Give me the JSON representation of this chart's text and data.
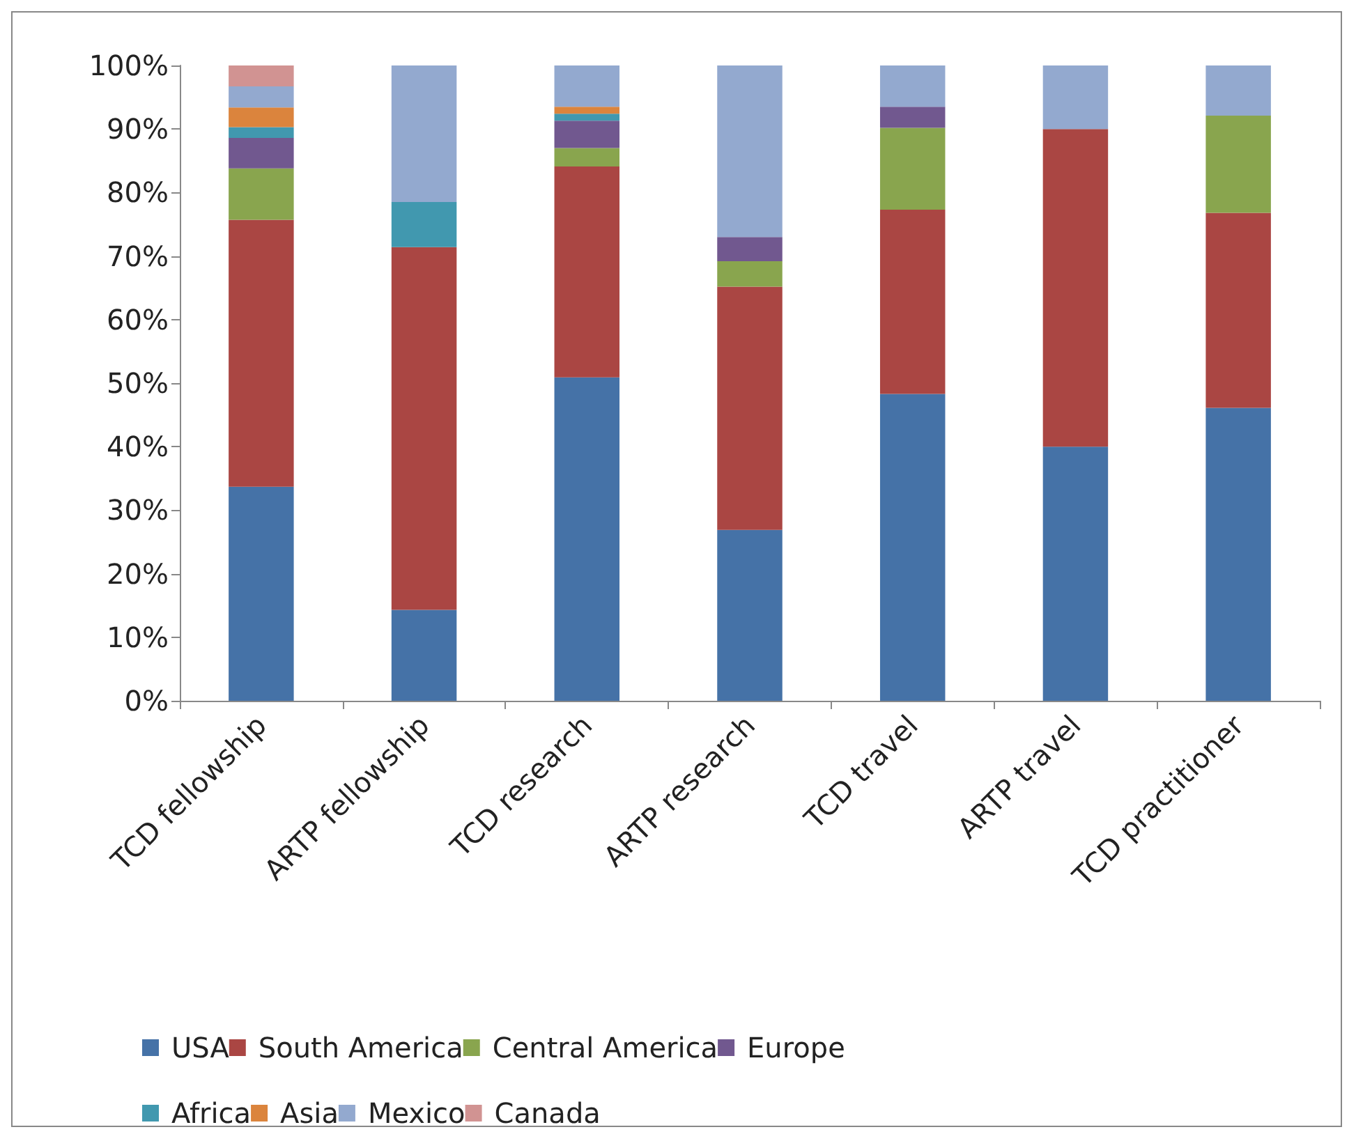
{
  "chart_data": {
    "type": "bar",
    "stacked": true,
    "categories": [
      "TCD fellowship",
      "ARTP fellowship",
      "TCD research",
      "ARTP research",
      "TCD travel",
      "ARTP travel",
      "TCD practitioner"
    ],
    "series": [
      {
        "name": "USA",
        "color": "#4572a7",
        "values": [
          33.7,
          14.3,
          50.9,
          26.9,
          48.3,
          40.0,
          46.1
        ]
      },
      {
        "name": "South America",
        "color": "#aa4643",
        "values": [
          42.0,
          57.1,
          33.2,
          38.3,
          29.0,
          50.0,
          30.7
        ]
      },
      {
        "name": "Central America",
        "color": "#89a54e",
        "values": [
          8.1,
          0,
          2.9,
          4.0,
          12.9,
          0,
          15.3
        ]
      },
      {
        "name": "Europe",
        "color": "#71588f",
        "values": [
          4.8,
          0,
          4.3,
          3.8,
          3.3,
          0,
          0
        ]
      },
      {
        "name": "Africa",
        "color": "#4198af",
        "values": [
          1.7,
          7.1,
          1.1,
          0,
          0,
          0,
          0
        ]
      },
      {
        "name": "Asia",
        "color": "#db843d",
        "values": [
          3.1,
          0,
          1.1,
          0,
          0,
          0,
          0
        ]
      },
      {
        "name": "Mexico",
        "color": "#93a9cf",
        "values": [
          3.3,
          21.5,
          6.5,
          27.0,
          6.5,
          10.0,
          7.9
        ]
      },
      {
        "name": "Canada",
        "color": "#d19392",
        "values": [
          3.3,
          0,
          0,
          0,
          0,
          0,
          0
        ]
      }
    ],
    "ylim": [
      0,
      100
    ],
    "yticks": [
      {
        "value": 0,
        "label": "0%"
      },
      {
        "value": 10,
        "label": "10%"
      },
      {
        "value": 20,
        "label": "20%"
      },
      {
        "value": 30,
        "label": "30%"
      },
      {
        "value": 40,
        "label": "40%"
      },
      {
        "value": 50,
        "label": "50%"
      },
      {
        "value": 60,
        "label": "60%"
      },
      {
        "value": 70,
        "label": "70%"
      },
      {
        "value": 80,
        "label": "80%"
      },
      {
        "value": 90,
        "label": "90%"
      },
      {
        "value": 100,
        "label": "100%"
      }
    ],
    "grid": false,
    "legend": "bottom"
  }
}
